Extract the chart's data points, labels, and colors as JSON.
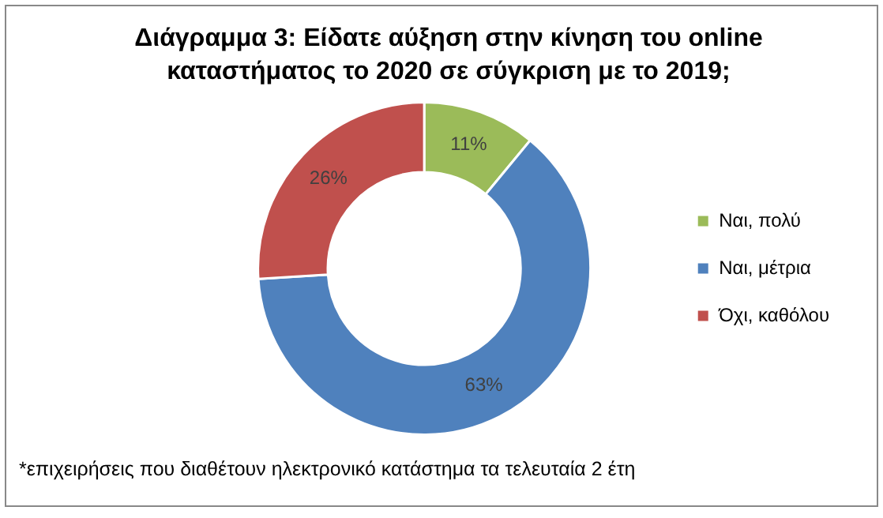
{
  "chart_data": {
    "type": "donut",
    "title": "Διάγραμμα 3: Είδατε αύξηση στην κίνηση του online καταστήματος το 2020 σε σύγκριση με το 2019;",
    "categories": [
      "Ναι, πολύ",
      "Ναι, μέτρια",
      "Όχι, καθόλου"
    ],
    "values": [
      11,
      63,
      26
    ],
    "colors": [
      "#9bbb59",
      "#4f81bd",
      "#c0504d"
    ],
    "value_labels": [
      "11%",
      "63%",
      "26%"
    ],
    "legend": "right",
    "annotations": [
      "*επιχειρήσεις που διαθέτουν ηλεκτρονικό κατάστημα τα τελευταία 2 έτη"
    ]
  }
}
